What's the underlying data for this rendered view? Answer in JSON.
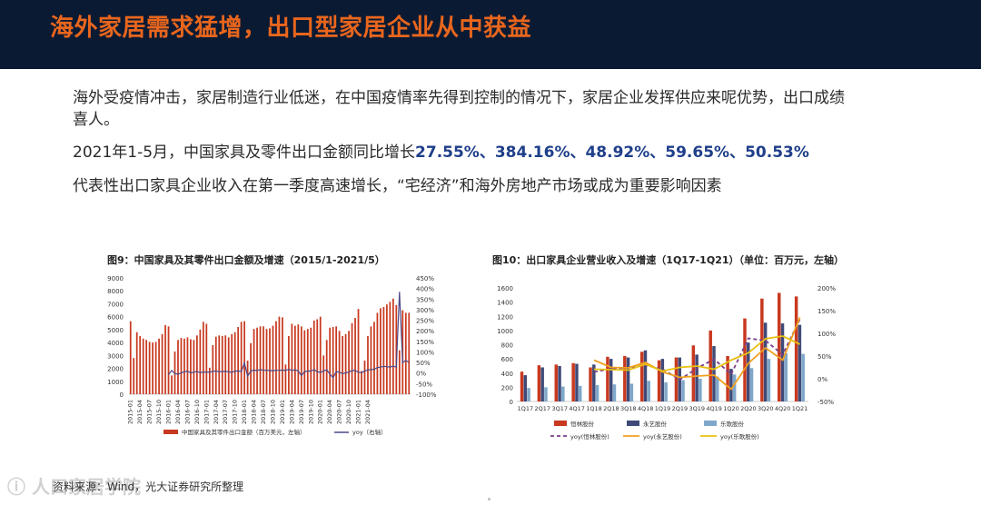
{
  "header": {
    "title": "海外家居需求猛增，出口型家居企业从中获益"
  },
  "bullets": {
    "b1": "海外受疫情冲击，家居制造行业低迷，在中国疫情率先得到控制的情况下，家居企业发挥供应来呢优势，出口成绩喜人。",
    "b2_prefix": "2021年1-5月，中国家具及零件出口金额同比增长",
    "b2_values": "27.55%、384.16%、48.92%、59.65%、50.53%",
    "b3": "代表性出口家具企业收入在第一季度高速增长，“宅经济”和海外房地产市场或成为重要影响因素"
  },
  "chart_data": [
    {
      "type": "bar",
      "title": "图9：中国家具及其零件出口金额及增速（2015/1-2021/5）",
      "ylim": [
        0,
        9000
      ],
      "y_ticks": [
        0,
        1000,
        2000,
        3000,
        4000,
        5000,
        6000,
        7000,
        8000,
        9000
      ],
      "y2lim": [
        -100,
        450
      ],
      "y2_ticks": [
        "450%",
        "400%",
        "350%",
        "300%",
        "250%",
        "200%",
        "150%",
        "100%",
        "50%",
        "0%",
        "-50%",
        "-100%"
      ],
      "x_ticks": [
        "2015-01",
        "2015-04",
        "2015-07",
        "2015-10",
        "2016-01",
        "2016-04",
        "2016-07",
        "2016-10",
        "2017-01",
        "2017-04",
        "2017-07",
        "2017-10",
        "2018-01",
        "2018-04",
        "2018-07",
        "2018-10",
        "2019-01",
        "2019-04",
        "2019-07",
        "2019-10",
        "2020-01",
        "2020-04",
        "2020-07",
        "2020-10",
        "2021-01",
        "2021-04"
      ],
      "series": [
        {
          "name": "中国家具及其零件出口金额（百万美元，左轴）",
          "color": "#c8391f",
          "values": [
            5650,
            2800,
            4800,
            4500,
            4300,
            4200,
            4050,
            4000,
            4050,
            4300,
            4650,
            5350,
            5250,
            1450,
            3300,
            4200,
            4350,
            4300,
            4400,
            4250,
            4200,
            4550,
            5000,
            5600,
            5450,
            2050,
            3800,
            4450,
            4550,
            4500,
            4550,
            4400,
            4650,
            4800,
            5200,
            5600,
            5650,
            2600,
            3950,
            5050,
            5150,
            5250,
            5250,
            5050,
            5100,
            5300,
            5650,
            6000,
            5950,
            2300,
            4500,
            5450,
            5300,
            5400,
            5250,
            4950,
            5050,
            5150,
            5700,
            5800,
            6000,
            3000,
            4200,
            5150,
            5200,
            5250,
            4900,
            4500,
            4650,
            4900,
            5500,
            5900,
            6600,
            1800,
            2600,
            4500,
            5250,
            5600,
            6300,
            6650,
            6750,
            6950,
            7150,
            7400,
            6900,
            3400,
            6500,
            6300,
            6300
          ]
        },
        {
          "name": "yoy（右轴）",
          "color": "#4a4a8a",
          "values": [
            null,
            null,
            null,
            null,
            null,
            null,
            null,
            null,
            null,
            null,
            null,
            null,
            -8,
            12,
            -2,
            -6,
            1,
            6,
            9,
            1,
            4,
            8,
            2,
            5,
            5,
            4,
            8,
            10,
            6,
            7,
            8,
            6,
            3,
            9,
            10,
            7,
            48,
            -15,
            10,
            14,
            12,
            16,
            13,
            13,
            12,
            10,
            13,
            13,
            14,
            12,
            18,
            12,
            15,
            10,
            -12,
            7,
            9,
            10,
            16,
            6,
            3,
            10,
            15,
            -5,
            -22,
            6,
            5,
            -3,
            1,
            4,
            12,
            12,
            4,
            2,
            9,
            15,
            16,
            18,
            26,
            28,
            32,
            30,
            28,
            33,
            27.55,
            384.16,
            48.92,
            59.65,
            50.53
          ]
        }
      ]
    },
    {
      "type": "bar",
      "title": "图10：出口家具企业营业收入及增速（1Q17-1Q21）（单位：百万元，左轴）",
      "ylim": [
        0,
        1600
      ],
      "y_ticks": [
        0,
        200,
        400,
        600,
        800,
        1000,
        1200,
        1400,
        1600
      ],
      "y2lim": [
        -50,
        200
      ],
      "y2_ticks": [
        "200%",
        "150%",
        "100%",
        "50%",
        "0%",
        "-50%"
      ],
      "categories": [
        "1Q17",
        "2Q17",
        "3Q17",
        "4Q17",
        "1Q18",
        "2Q18",
        "3Q18",
        "4Q18",
        "1Q19",
        "2Q19",
        "3Q19",
        "4Q19",
        "1Q20",
        "2Q20",
        "3Q20",
        "4Q20",
        "1Q21"
      ],
      "series": [
        {
          "name": "恒林股份",
          "color": "#c8391f",
          "values": [
            420,
            510,
            520,
            540,
            480,
            630,
            640,
            700,
            580,
            620,
            790,
            1000,
            640,
            1170,
            1450,
            1530,
            1480
          ]
        },
        {
          "name": "永艺股份",
          "color": "#3f4a78",
          "values": [
            370,
            480,
            500,
            530,
            520,
            600,
            620,
            720,
            600,
            620,
            660,
            780,
            460,
            830,
            1110,
            1100,
            1080
          ]
        },
        {
          "name": "乐歌股份",
          "color": "#7fa7c9",
          "values": [
            190,
            200,
            210,
            220,
            230,
            240,
            250,
            290,
            270,
            300,
            320,
            350,
            380,
            470,
            600,
            680,
            670
          ]
        },
        {
          "name": "yoy(恒林股份)",
          "color": "#7a3f8a",
          "dash": true,
          "values": [
            null,
            null,
            null,
            null,
            15,
            22,
            24,
            30,
            21,
            -2,
            23,
            43,
            10,
            89,
            84,
            53,
            131
          ]
        },
        {
          "name": "yoy(永艺股份)",
          "color": "#f0a020",
          "values": [
            null,
            null,
            null,
            null,
            41,
            25,
            24,
            36,
            15,
            3,
            6,
            8,
            -23,
            34,
            68,
            41,
            135
          ]
        },
        {
          "name": "yoy(乐歌股份)",
          "color": "#e8c010",
          "values": [
            null,
            null,
            null,
            null,
            21,
            20,
            19,
            32,
            17,
            25,
            28,
            21,
            41,
            57,
            88,
            94,
            76
          ]
        }
      ]
    }
  ],
  "source": "资料来源：Wind，光大证券研究所整理",
  "watermark": "人口家居学院"
}
